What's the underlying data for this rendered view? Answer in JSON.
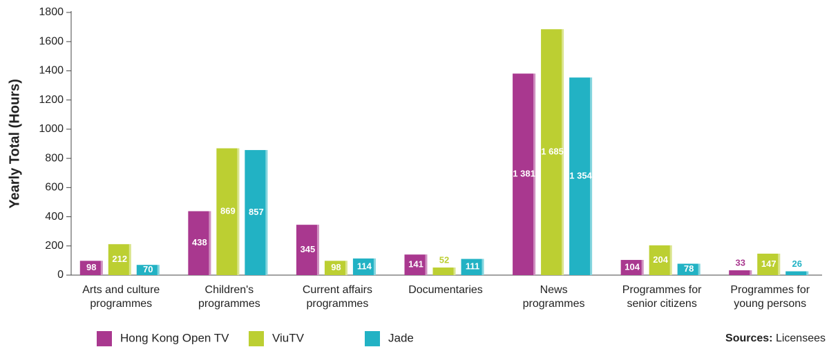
{
  "chart_data": {
    "type": "bar",
    "y_axis_label": "Yearly Total (Hours)",
    "categories": [
      [
        "Arts and culture",
        "programmes"
      ],
      [
        "Children's",
        "programmes"
      ],
      [
        "Current affairs",
        "programmes"
      ],
      [
        "Documentaries"
      ],
      [
        "News",
        "programmes"
      ],
      [
        "Programmes for",
        "senior citizens"
      ],
      [
        "Programmes for",
        "young persons"
      ]
    ],
    "series": [
      {
        "name": "Hong Kong Open TV",
        "color": "#a9388f",
        "values": [
          98,
          438,
          345,
          141,
          1381,
          104,
          33
        ],
        "value_labels": [
          "98",
          "438",
          "345",
          "141",
          "1 381",
          "104",
          "33"
        ]
      },
      {
        "name": "ViuTV",
        "color": "#bccf32",
        "values": [
          212,
          869,
          98,
          52,
          1685,
          204,
          147
        ],
        "value_labels": [
          "212",
          "869",
          "98",
          "52",
          "1 685",
          "204",
          "147"
        ]
      },
      {
        "name": "Jade",
        "color": "#22b2c4",
        "values": [
          70,
          857,
          114,
          111,
          1354,
          78,
          26
        ],
        "value_labels": [
          "70",
          "857",
          "114",
          "111",
          "1 354",
          "78",
          "26"
        ]
      }
    ],
    "ylim": [
      0,
      1800
    ],
    "yticks": [
      0,
      200,
      400,
      600,
      800,
      1000,
      1200,
      1400,
      1600,
      1800
    ],
    "sources_label": "Sources:",
    "sources": "Licensees"
  }
}
